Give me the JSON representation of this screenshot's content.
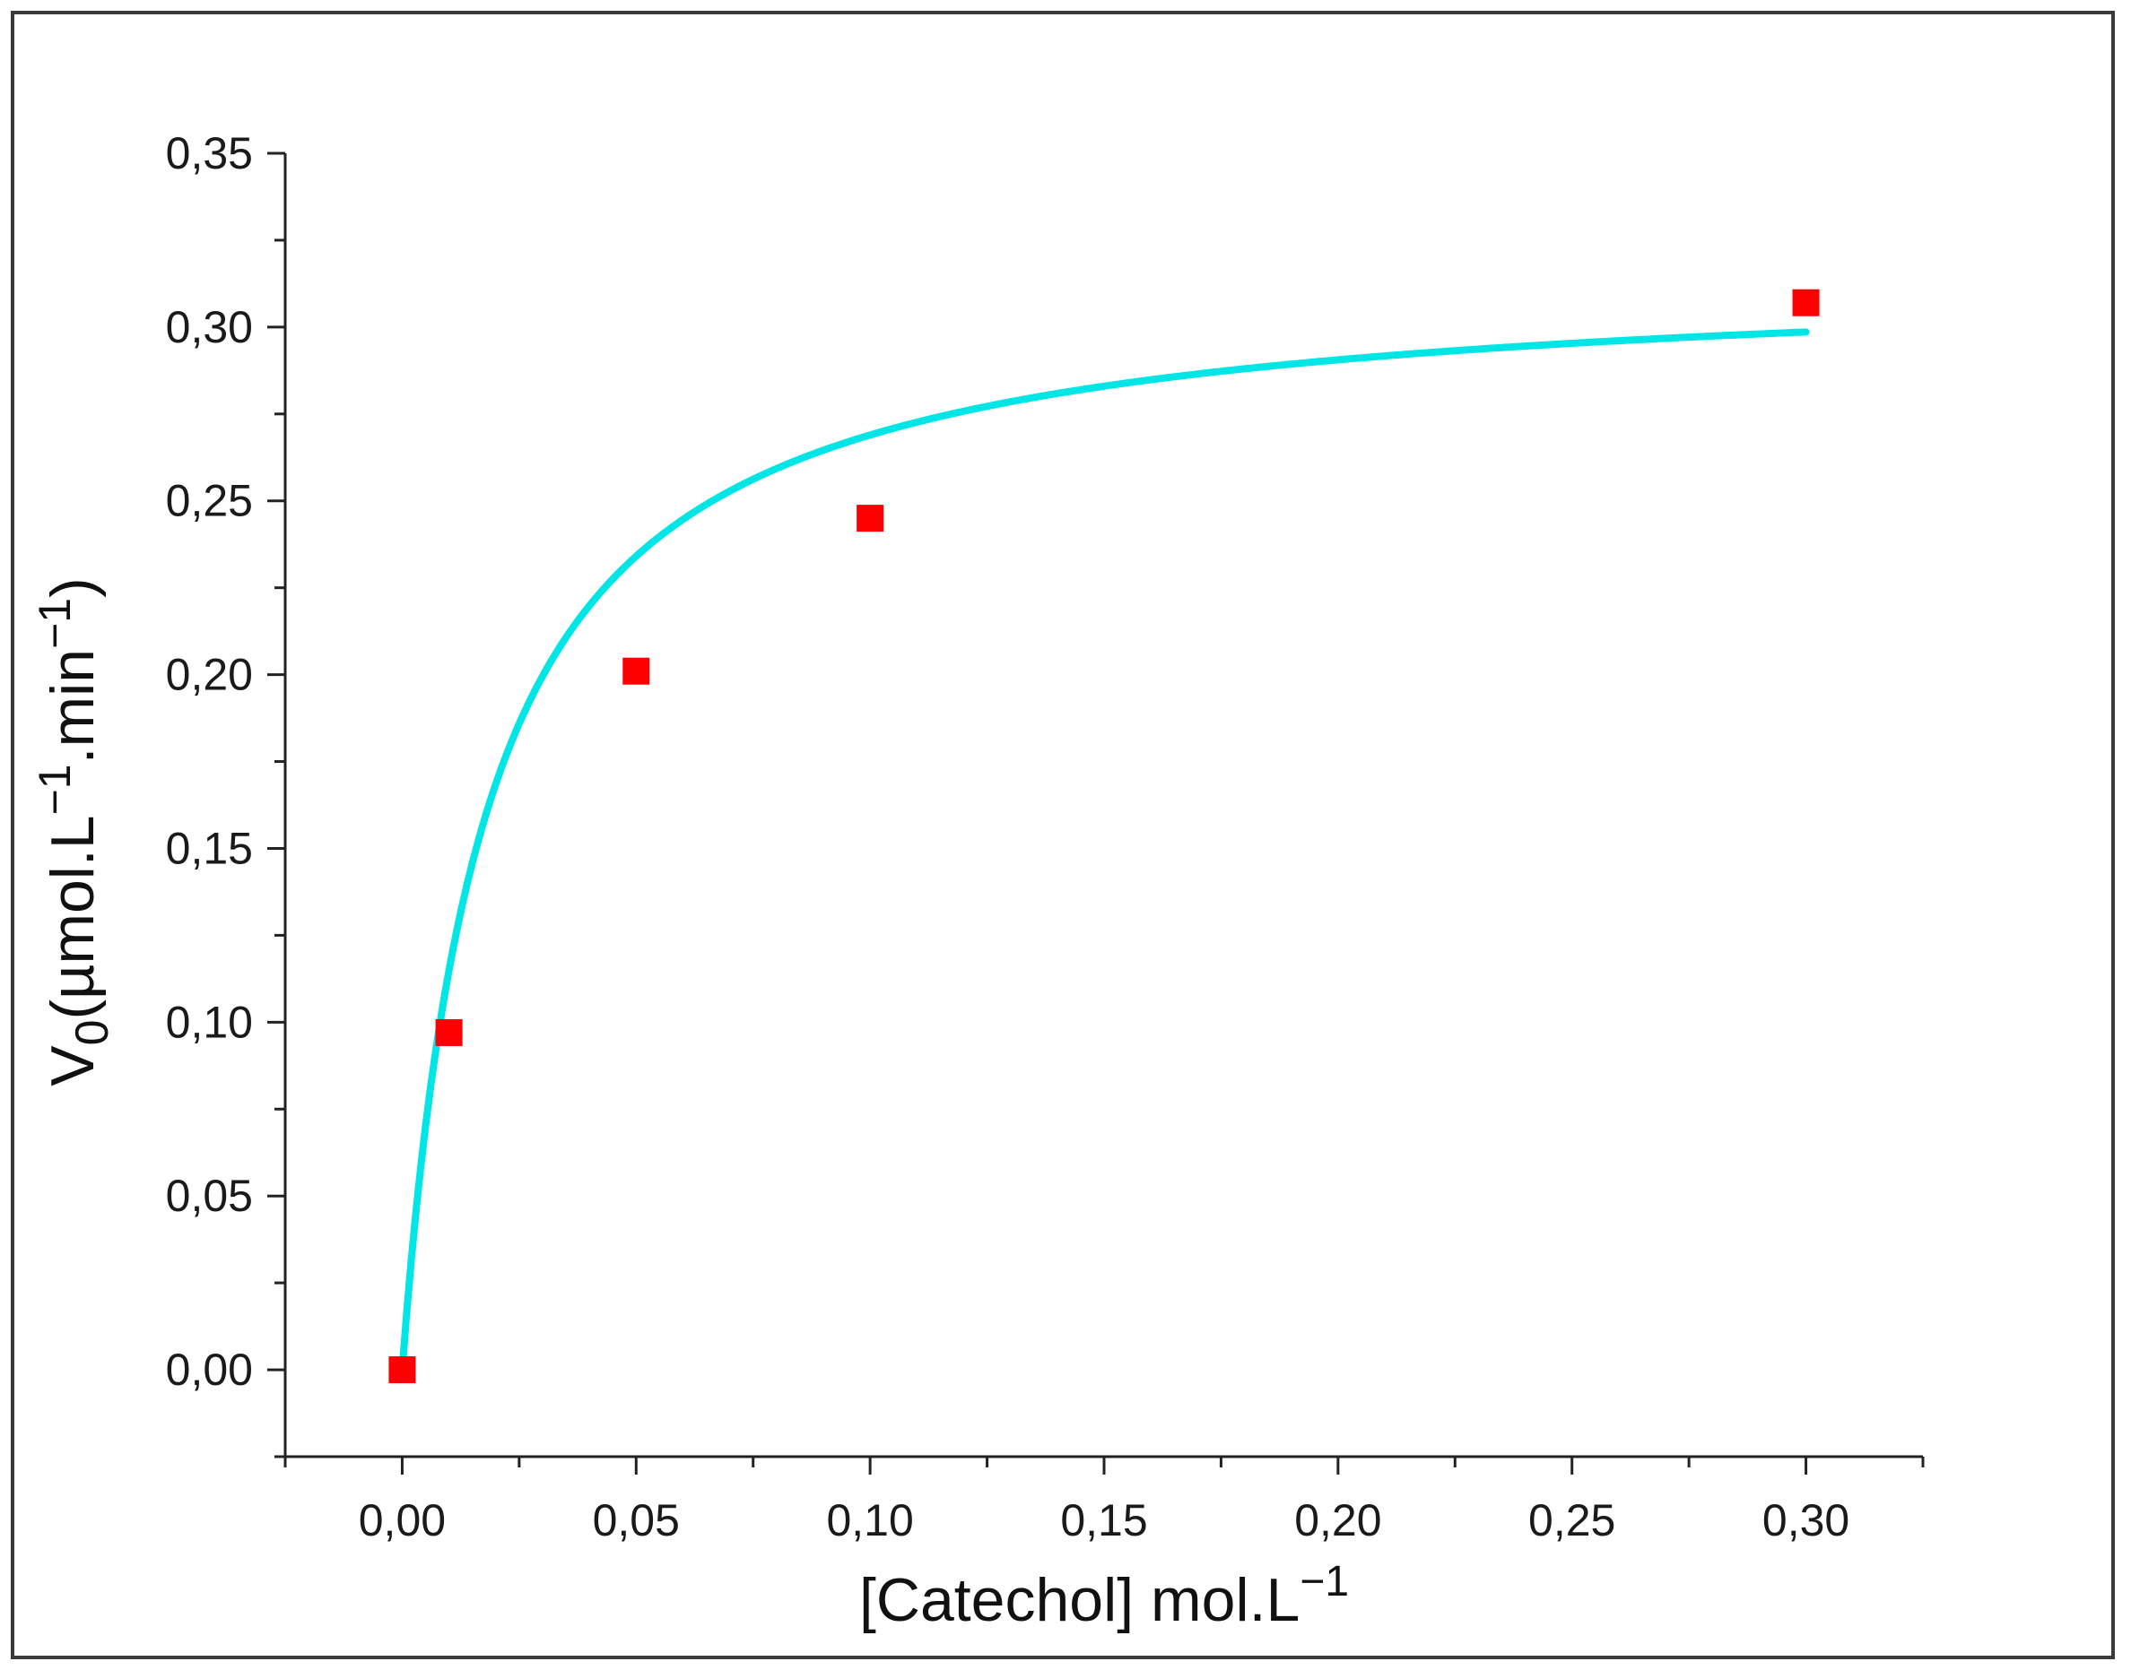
{
  "chart_data": {
    "type": "scatter",
    "xlabel": "[Catechol] mol.L",
    "xlabel_sup": "−1",
    "ylabel_main": "V",
    "ylabel_sub": "0",
    "ylabel_rest1": "(µmol.L",
    "ylabel_sup1": "−1",
    "ylabel_rest2": ".min",
    "ylabel_sup2": "−1",
    "ylabel_rest3": ")",
    "xlim": [
      -0.025,
      0.325
    ],
    "ylim": [
      -0.025,
      0.35
    ],
    "x_ticks": [
      {
        "value": 0.0,
        "label": "0,00"
      },
      {
        "value": 0.05,
        "label": "0,05"
      },
      {
        "value": 0.1,
        "label": "0,10"
      },
      {
        "value": 0.15,
        "label": "0,15"
      },
      {
        "value": 0.2,
        "label": "0,20"
      },
      {
        "value": 0.25,
        "label": "0,25"
      },
      {
        "value": 0.3,
        "label": "0,30"
      }
    ],
    "y_ticks": [
      {
        "value": 0.0,
        "label": "0,00"
      },
      {
        "value": 0.05,
        "label": "0,05"
      },
      {
        "value": 0.1,
        "label": "0,10"
      },
      {
        "value": 0.15,
        "label": "0,15"
      },
      {
        "value": 0.2,
        "label": "0,20"
      },
      {
        "value": 0.25,
        "label": "0,25"
      },
      {
        "value": 0.3,
        "label": "0,30"
      },
      {
        "value": 0.35,
        "label": "0,35"
      }
    ],
    "series": [
      {
        "kind": "points",
        "marker": "square",
        "color": "#ff0000",
        "x": [
          0.0,
          0.01,
          0.05,
          0.1,
          0.3
        ],
        "y": [
          0.0,
          0.097,
          0.201,
          0.245,
          0.307
        ]
      },
      {
        "kind": "fit",
        "color": "#00e5e5",
        "model": "michaelis-menten",
        "vmax": 0.316,
        "km": 0.0175,
        "x_range": [
          0.0,
          0.3
        ]
      }
    ],
    "grid": false,
    "legend": "none"
  }
}
